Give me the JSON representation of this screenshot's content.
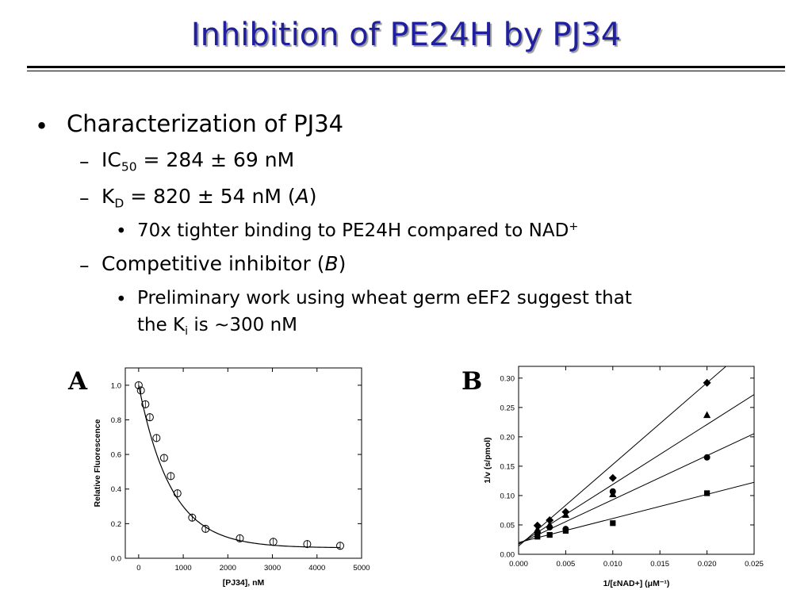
{
  "slide": {
    "title": "Inhibition of PE24H by PJ34",
    "bullet_char": "•",
    "dash_char": "–",
    "items": {
      "characterization": "Characterization of PJ34",
      "ic50_main": "IC",
      "ic50_sub": "50",
      "ic50_value": " = 284 ± 69 nM",
      "kd_main": "K",
      "kd_sub": "D",
      "kd_value": " = 820 ± 54 nM (",
      "kd_ref": "A",
      "kd_close": ")",
      "binding": "70x tighter binding to PE24H compared to NAD",
      "binding_sup": "+",
      "competitive": "Competitive inhibitor (",
      "competitive_ref": "B",
      "competitive_close": ")",
      "preliminary_line1": "Preliminary work using wheat germ eEF2 suggest that",
      "preliminary_line2_a": "the K",
      "preliminary_line2_sub": "i",
      "preliminary_line2_b": " is ~300 nM"
    }
  },
  "chart_data": [
    {
      "panel": "A",
      "type": "scatter",
      "xlabel": "[PJ34], nM",
      "ylabel": "Relative Fluorescence",
      "xlim": [
        -300,
        5000
      ],
      "ylim": [
        0.0,
        1.1
      ],
      "xticks": [
        0,
        1000,
        2000,
        3000,
        4000,
        5000
      ],
      "xtick_labels": [
        "0",
        "1000",
        "2000",
        "3000",
        "4000",
        "5000"
      ],
      "yticks": [
        0.0,
        0.2,
        0.4,
        0.6,
        0.8,
        1.0
      ],
      "ytick_labels": [
        "0.0",
        "0.2",
        "0.4",
        "0.6",
        "0.8",
        "1.0"
      ],
      "grid": false,
      "marker": "open-circle",
      "points": [
        {
          "x": 0,
          "y": 1.0
        },
        {
          "x": 50,
          "y": 0.97
        },
        {
          "x": 150,
          "y": 0.89
        },
        {
          "x": 250,
          "y": 0.815
        },
        {
          "x": 400,
          "y": 0.695
        },
        {
          "x": 570,
          "y": 0.58
        },
        {
          "x": 720,
          "y": 0.475
        },
        {
          "x": 870,
          "y": 0.375
        },
        {
          "x": 1200,
          "y": 0.235
        },
        {
          "x": 1500,
          "y": 0.17
        },
        {
          "x": 2270,
          "y": 0.115
        },
        {
          "x": 3020,
          "y": 0.095
        },
        {
          "x": 3780,
          "y": 0.082
        },
        {
          "x": 4520,
          "y": 0.072
        }
      ],
      "fit": {
        "form": "exponential_decay",
        "y0": 0.06,
        "A": 0.94,
        "t": 730,
        "x_start": 0,
        "x_end": 4520
      }
    },
    {
      "panel": "B",
      "type": "scatter",
      "xlabel": "1/[εNAD+] (μM⁻¹)",
      "ylabel": "1/v (s/pmol)",
      "xlim": [
        0.0,
        0.025
      ],
      "ylim": [
        0.0,
        0.32
      ],
      "xticks": [
        0.0,
        0.005,
        0.01,
        0.015,
        0.02,
        0.025
      ],
      "xtick_labels": [
        "0.000",
        "0.005",
        "0.010",
        "0.015",
        "0.020",
        "0.025"
      ],
      "yticks": [
        0.0,
        0.05,
        0.1,
        0.15,
        0.2,
        0.25,
        0.3
      ],
      "ytick_labels": [
        "0.00",
        "0.05",
        "0.10",
        "0.15",
        "0.20",
        "0.25",
        "0.30"
      ],
      "grid": false,
      "series": [
        {
          "marker": "square",
          "x": [
            0.002,
            0.0033,
            0.005,
            0.01,
            0.02
          ],
          "y": [
            0.03,
            0.033,
            0.04,
            0.053,
            0.104
          ],
          "fit": {
            "slope": 4.1,
            "intercept": 0.02
          }
        },
        {
          "marker": "circle",
          "x": [
            0.002,
            0.0033,
            0.005,
            0.01,
            0.02
          ],
          "y": [
            0.037,
            0.046,
            0.043,
            0.107,
            0.165
          ],
          "fit": {
            "slope": 7.5,
            "intercept": 0.018
          }
        },
        {
          "marker": "triangle",
          "x": [
            0.002,
            0.0033,
            0.005,
            0.01,
            0.02
          ],
          "y": [
            0.042,
            0.05,
            0.067,
            0.102,
            0.237
          ],
          "fit": {
            "slope": 10.2,
            "intercept": 0.017
          }
        },
        {
          "marker": "diamond",
          "x": [
            0.002,
            0.0033,
            0.005,
            0.01,
            0.02
          ],
          "y": [
            0.049,
            0.058,
            0.072,
            0.13,
            0.292
          ],
          "fit": {
            "slope": 13.9,
            "intercept": 0.014
          }
        }
      ]
    }
  ],
  "panels": {
    "a_letter": "A",
    "b_letter": "B"
  }
}
